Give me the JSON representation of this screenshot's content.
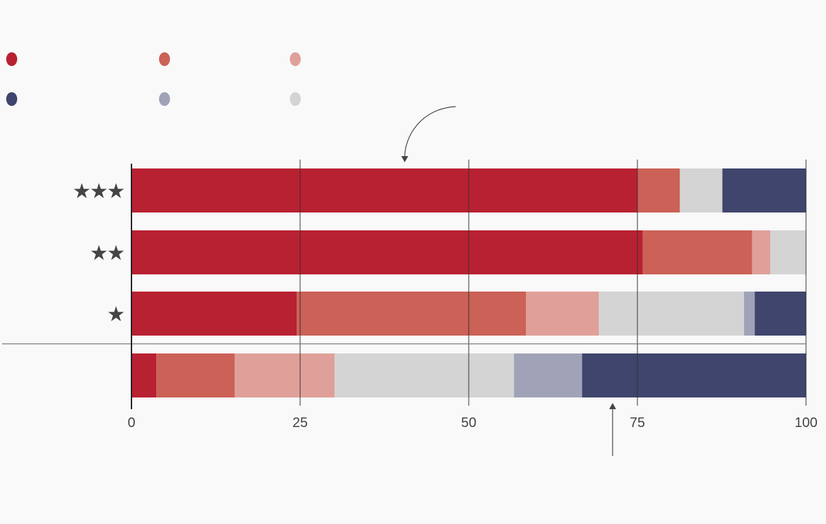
{
  "chart_data": {
    "type": "bar",
    "orientation": "horizontal",
    "stacked": true,
    "title": "",
    "xlabel": "",
    "ylabel": "",
    "xlim": [
      0,
      100
    ],
    "xticks": [
      0,
      25,
      50,
      75,
      100
    ],
    "xtick_labels": [
      "0",
      "25",
      "50",
      "75",
      "100"
    ],
    "grid": true,
    "legend_position": "top-left",
    "categories": [
      "★★★",
      "★★",
      "★",
      ""
    ],
    "series": [
      {
        "name": "",
        "color": "#b82132",
        "values": [
          75.0,
          75.8,
          24.5,
          3.7
        ]
      },
      {
        "name": "",
        "color": "#cb6157",
        "values": [
          6.3,
          16.2,
          34.0,
          11.6
        ]
      },
      {
        "name": "",
        "color": "#e0a09a",
        "values": [
          0,
          2.7,
          10.8,
          14.8
        ]
      },
      {
        "name": "",
        "color": "#d4d4d4",
        "values": [
          6.3,
          5.3,
          21.5,
          26.6
        ]
      },
      {
        "name": "",
        "color": "#a0a3b8",
        "values": [
          0,
          0,
          1.6,
          10.1
        ]
      },
      {
        "name": "",
        "color": "#3f456c",
        "values": [
          12.4,
          0,
          7.6,
          33.2
        ]
      }
    ],
    "legend_order": [
      0,
      1,
      2,
      5,
      4,
      3
    ]
  }
}
